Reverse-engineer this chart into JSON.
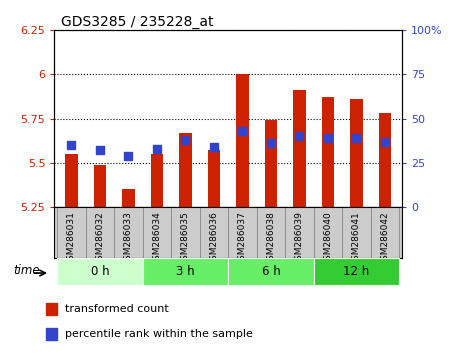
{
  "title": "GDS3285 / 235228_at",
  "samples": [
    "GSM286031",
    "GSM286032",
    "GSM286033",
    "GSM286034",
    "GSM286035",
    "GSM286036",
    "GSM286037",
    "GSM286038",
    "GSM286039",
    "GSM286040",
    "GSM286041",
    "GSM286042"
  ],
  "transformed_count": [
    5.55,
    5.49,
    5.35,
    5.55,
    5.67,
    5.57,
    6.0,
    5.74,
    5.91,
    5.87,
    5.86,
    5.78
  ],
  "percentile_rank": [
    35,
    32,
    29,
    33,
    38,
    34,
    43,
    36,
    40,
    39,
    39,
    37
  ],
  "bar_color": "#cc2200",
  "dot_color": "#3344cc",
  "ylim_left": [
    5.25,
    6.25
  ],
  "ylim_right": [
    0,
    100
  ],
  "yticks_left": [
    5.25,
    5.5,
    5.75,
    6.0,
    6.25
  ],
  "yticks_right": [
    0,
    25,
    50,
    75,
    100
  ],
  "ytick_labels_left": [
    "5.25",
    "5.5",
    "5.75",
    "6",
    "6.25"
  ],
  "ytick_labels_right": [
    "0",
    "25",
    "50",
    "75",
    "100%"
  ],
  "groups": [
    {
      "label": "0 h",
      "start": 0,
      "end": 3,
      "color": "#ccffcc"
    },
    {
      "label": "3 h",
      "start": 3,
      "end": 6,
      "color": "#66ee66"
    },
    {
      "label": "6 h",
      "start": 6,
      "end": 9,
      "color": "#66ee66"
    },
    {
      "label": "12 h",
      "start": 9,
      "end": 12,
      "color": "#33cc33"
    }
  ],
  "bar_bottom": 5.25,
  "bar_width": 0.45,
  "dot_size": 35,
  "legend_red": "transformed count",
  "legend_blue": "percentile rank within the sample",
  "time_label": "time",
  "tick_label_color_left": "#cc2200",
  "tick_label_color_right": "#3344cc",
  "label_bg_color": "#cccccc",
  "label_border_color": "#888888"
}
